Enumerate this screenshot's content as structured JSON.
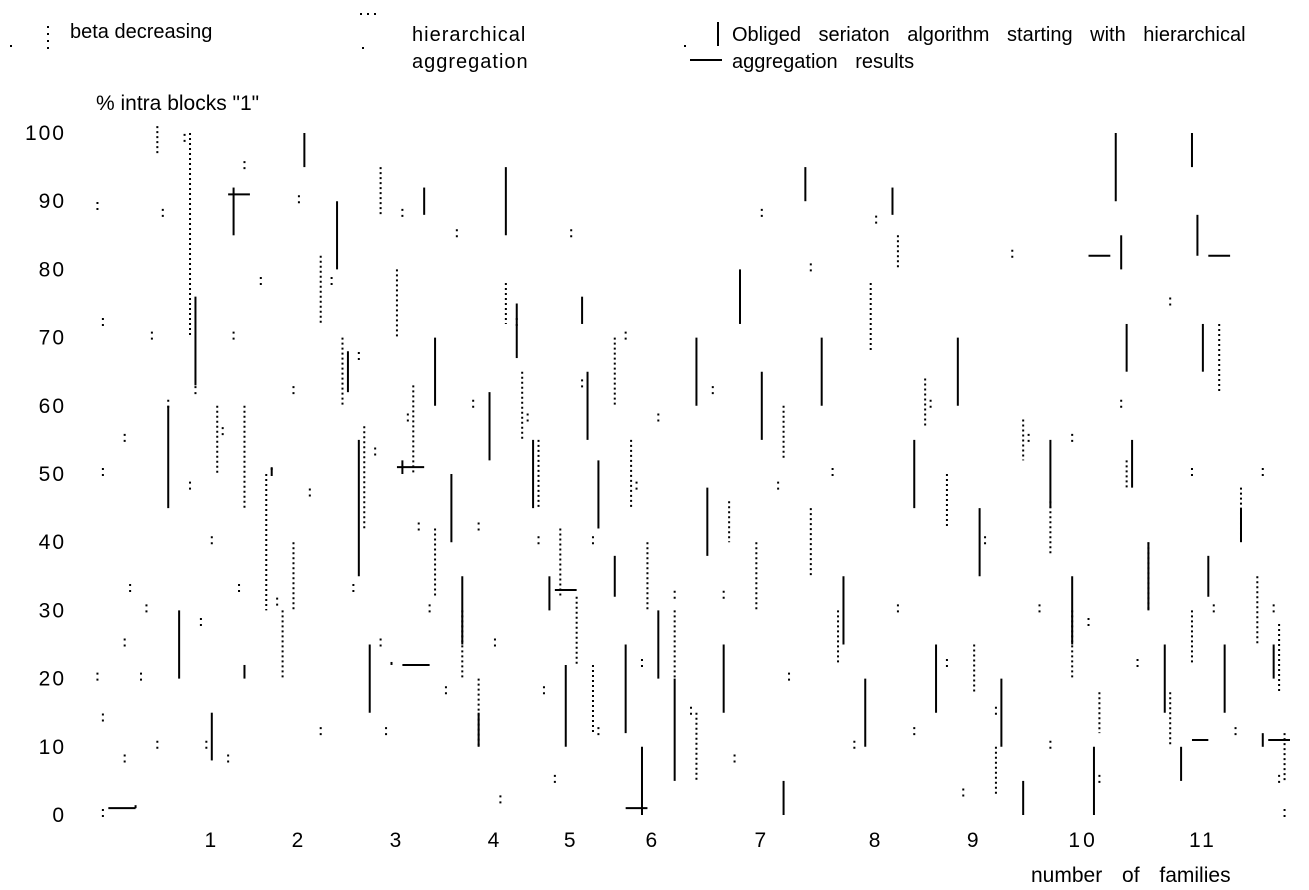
{
  "chart_data": {
    "type": "scatter",
    "title": "",
    "ylabel": "% intra blocks \"1\"",
    "xlabel": "number of families",
    "ylim": [
      0,
      100
    ],
    "xlim": [
      0.2,
      11.2
    ],
    "y_ticks": [
      "0",
      "10",
      "20",
      "30",
      "40",
      "50",
      "60",
      "70",
      "80",
      "90",
      "100"
    ],
    "x_ticks": [
      "1",
      "2",
      "3",
      "4",
      "5",
      "6",
      "7",
      "8",
      "9",
      "10",
      "11"
    ],
    "grid": false,
    "legend_position": "top",
    "legend": [
      {
        "label": "beta decreasing",
        "style": "sparse-dotted vertical segments"
      },
      {
        "label": "hierarchical aggregation",
        "style": "dense-dotted vertical segments"
      },
      {
        "label": "Obliged seriaton algorithm starting with hierarchical aggregation results",
        "style": "solid vertical segments"
      }
    ],
    "series": [
      {
        "name": "beta decreasing",
        "points": [
          [
            0.25,
            89
          ],
          [
            0.3,
            72
          ],
          [
            0.3,
            50
          ],
          [
            0.25,
            20
          ],
          [
            0.3,
            14
          ],
          [
            0.3,
            0
          ],
          [
            0.5,
            25
          ],
          [
            0.5,
            8
          ],
          [
            0.55,
            33
          ],
          [
            0.5,
            55
          ],
          [
            0.75,
            70
          ],
          [
            0.7,
            30
          ],
          [
            0.65,
            20
          ],
          [
            0.8,
            10
          ],
          [
            0.85,
            88
          ],
          [
            0.9,
            60
          ],
          [
            1.05,
            99
          ],
          [
            1.15,
            62
          ],
          [
            1.1,
            48
          ],
          [
            1.2,
            28
          ],
          [
            1.25,
            10
          ],
          [
            1.3,
            40
          ],
          [
            1.4,
            56
          ],
          [
            1.5,
            70
          ],
          [
            1.55,
            33
          ],
          [
            1.45,
            8
          ],
          [
            1.6,
            95
          ],
          [
            1.75,
            78
          ],
          [
            1.85,
            50
          ],
          [
            1.9,
            31
          ],
          [
            2.1,
            90
          ],
          [
            2.05,
            62
          ],
          [
            2.2,
            47
          ],
          [
            2.3,
            12
          ],
          [
            2.4,
            78
          ],
          [
            2.6,
            33
          ],
          [
            2.65,
            67
          ],
          [
            2.8,
            53
          ],
          [
            2.85,
            25
          ],
          [
            2.9,
            12
          ],
          [
            3.05,
            88
          ],
          [
            3.1,
            58
          ],
          [
            3.2,
            42
          ],
          [
            3.3,
            30
          ],
          [
            3.45,
            18
          ],
          [
            3.55,
            85
          ],
          [
            3.7,
            60
          ],
          [
            3.75,
            42
          ],
          [
            3.9,
            25
          ],
          [
            3.95,
            2
          ],
          [
            4.1,
            72
          ],
          [
            4.2,
            58
          ],
          [
            4.3,
            40
          ],
          [
            4.35,
            18
          ],
          [
            4.45,
            5
          ],
          [
            4.6,
            85
          ],
          [
            4.7,
            63
          ],
          [
            4.8,
            40
          ],
          [
            4.85,
            12
          ],
          [
            5.1,
            70
          ],
          [
            5.2,
            48
          ],
          [
            5.25,
            22
          ],
          [
            5.4,
            58
          ],
          [
            5.55,
            32
          ],
          [
            5.7,
            15
          ],
          [
            5.9,
            62
          ],
          [
            6.0,
            32
          ],
          [
            6.1,
            8
          ],
          [
            6.35,
            88
          ],
          [
            6.5,
            48
          ],
          [
            6.6,
            20
          ],
          [
            6.8,
            80
          ],
          [
            7.0,
            50
          ],
          [
            7.2,
            10
          ],
          [
            7.4,
            87
          ],
          [
            7.6,
            30
          ],
          [
            7.75,
            12
          ],
          [
            7.9,
            60
          ],
          [
            8.05,
            22
          ],
          [
            8.2,
            3
          ],
          [
            8.4,
            40
          ],
          [
            8.5,
            15
          ],
          [
            8.65,
            82
          ],
          [
            8.8,
            55
          ],
          [
            8.9,
            30
          ],
          [
            9.0,
            10
          ],
          [
            9.2,
            55
          ],
          [
            9.35,
            28
          ],
          [
            9.45,
            5
          ],
          [
            9.65,
            60
          ],
          [
            9.8,
            22
          ],
          [
            10.1,
            75
          ],
          [
            10.3,
            50
          ],
          [
            10.5,
            30
          ],
          [
            10.7,
            12
          ],
          [
            10.95,
            50
          ],
          [
            11.05,
            30
          ],
          [
            11.1,
            5
          ],
          [
            11.15,
            0
          ]
        ]
      },
      {
        "name": "hierarchical aggregation",
        "segments": [
          [
            0.8,
            97,
            101
          ],
          [
            1.1,
            70,
            100
          ],
          [
            1.35,
            50,
            60
          ],
          [
            1.6,
            45,
            60
          ],
          [
            1.8,
            30,
            50
          ],
          [
            1.95,
            20,
            30
          ],
          [
            2.05,
            30,
            40
          ],
          [
            2.3,
            72,
            82
          ],
          [
            2.5,
            60,
            70
          ],
          [
            2.7,
            42,
            57
          ],
          [
            2.85,
            88,
            95
          ],
          [
            3.0,
            70,
            80
          ],
          [
            3.15,
            50,
            63
          ],
          [
            3.35,
            32,
            42
          ],
          [
            3.6,
            20,
            30
          ],
          [
            3.75,
            10,
            20
          ],
          [
            4.0,
            72,
            78
          ],
          [
            4.15,
            55,
            65
          ],
          [
            4.3,
            45,
            55
          ],
          [
            4.5,
            32,
            42
          ],
          [
            4.65,
            22,
            32
          ],
          [
            4.8,
            12,
            22
          ],
          [
            5.0,
            60,
            70
          ],
          [
            5.15,
            45,
            55
          ],
          [
            5.3,
            30,
            40
          ],
          [
            5.55,
            20,
            30
          ],
          [
            5.75,
            5,
            15
          ],
          [
            6.05,
            40,
            46
          ],
          [
            6.3,
            30,
            40
          ],
          [
            6.55,
            52,
            60
          ],
          [
            6.8,
            35,
            45
          ],
          [
            7.05,
            22,
            30
          ],
          [
            7.35,
            68,
            78
          ],
          [
            7.6,
            80,
            85
          ],
          [
            7.85,
            57,
            64
          ],
          [
            8.05,
            42,
            50
          ],
          [
            8.3,
            18,
            25
          ],
          [
            8.5,
            3,
            10
          ],
          [
            8.75,
            52,
            58
          ],
          [
            9.0,
            38,
            46
          ],
          [
            9.2,
            20,
            30
          ],
          [
            9.45,
            12,
            18
          ],
          [
            9.7,
            48,
            52
          ],
          [
            9.9,
            30,
            40
          ],
          [
            10.1,
            10,
            18
          ],
          [
            10.3,
            22,
            30
          ],
          [
            10.55,
            62,
            72
          ],
          [
            10.75,
            40,
            48
          ],
          [
            10.9,
            25,
            35
          ],
          [
            11.1,
            18,
            28
          ],
          [
            11.15,
            5,
            12
          ]
        ]
      },
      {
        "name": "Obliged seriaton algorithm starting with hierarchical aggregation results",
        "segments": [
          [
            0.6,
            1,
            1
          ],
          [
            0.9,
            45,
            60
          ],
          [
            1.0,
            20,
            30
          ],
          [
            1.15,
            63,
            76
          ],
          [
            1.3,
            8,
            15
          ],
          [
            1.5,
            85,
            92
          ],
          [
            1.6,
            20,
            22
          ],
          [
            1.85,
            50,
            51
          ],
          [
            2.15,
            95,
            100
          ],
          [
            2.45,
            80,
            90
          ],
          [
            2.55,
            62,
            68
          ],
          [
            2.65,
            35,
            55
          ],
          [
            2.75,
            15,
            25
          ],
          [
            2.95,
            22,
            22
          ],
          [
            3.05,
            50,
            52
          ],
          [
            3.25,
            88,
            92
          ],
          [
            3.35,
            60,
            70
          ],
          [
            3.5,
            40,
            50
          ],
          [
            3.6,
            25,
            35
          ],
          [
            3.75,
            10,
            15
          ],
          [
            3.85,
            52,
            62
          ],
          [
            4.0,
            85,
            95
          ],
          [
            4.1,
            67,
            75
          ],
          [
            4.25,
            45,
            55
          ],
          [
            4.4,
            30,
            35
          ],
          [
            4.55,
            10,
            22
          ],
          [
            4.7,
            72,
            76
          ],
          [
            4.75,
            55,
            65
          ],
          [
            4.85,
            42,
            52
          ],
          [
            5.0,
            32,
            38
          ],
          [
            5.1,
            12,
            25
          ],
          [
            5.25,
            0,
            10
          ],
          [
            5.4,
            20,
            30
          ],
          [
            5.55,
            5,
            20
          ],
          [
            5.75,
            60,
            70
          ],
          [
            5.85,
            38,
            48
          ],
          [
            6.0,
            15,
            25
          ],
          [
            6.15,
            72,
            80
          ],
          [
            6.35,
            55,
            65
          ],
          [
            6.55,
            0,
            5
          ],
          [
            6.75,
            90,
            95
          ],
          [
            6.9,
            60,
            70
          ],
          [
            7.1,
            25,
            35
          ],
          [
            7.3,
            10,
            20
          ],
          [
            7.55,
            88,
            92
          ],
          [
            7.75,
            45,
            55
          ],
          [
            7.95,
            15,
            25
          ],
          [
            8.15,
            60,
            70
          ],
          [
            8.35,
            35,
            45
          ],
          [
            8.55,
            10,
            20
          ],
          [
            8.75,
            0,
            5
          ],
          [
            9.0,
            45,
            55
          ],
          [
            9.2,
            25,
            35
          ],
          [
            9.4,
            0,
            10
          ],
          [
            9.6,
            90,
            100
          ],
          [
            9.65,
            80,
            85
          ],
          [
            9.7,
            65,
            72
          ],
          [
            9.75,
            48,
            55
          ],
          [
            9.9,
            30,
            40
          ],
          [
            10.05,
            15,
            25
          ],
          [
            10.2,
            5,
            10
          ],
          [
            10.3,
            95,
            100
          ],
          [
            10.35,
            82,
            88
          ],
          [
            10.4,
            65,
            72
          ],
          [
            10.45,
            32,
            38
          ],
          [
            10.6,
            15,
            25
          ],
          [
            10.75,
            40,
            45
          ],
          [
            10.95,
            10,
            12
          ],
          [
            11.05,
            20,
            25
          ]
        ],
        "horizontal": [
          [
            0.35,
            0.6,
            1
          ],
          [
            1.45,
            1.65,
            91
          ],
          [
            3.0,
            3.25,
            51
          ],
          [
            3.05,
            3.3,
            22
          ],
          [
            4.45,
            4.65,
            33
          ],
          [
            5.1,
            5.3,
            1
          ],
          [
            9.35,
            9.55,
            82
          ],
          [
            10.3,
            10.45,
            11
          ],
          [
            10.45,
            10.65,
            82
          ],
          [
            11.0,
            11.2,
            11
          ]
        ]
      }
    ]
  }
}
